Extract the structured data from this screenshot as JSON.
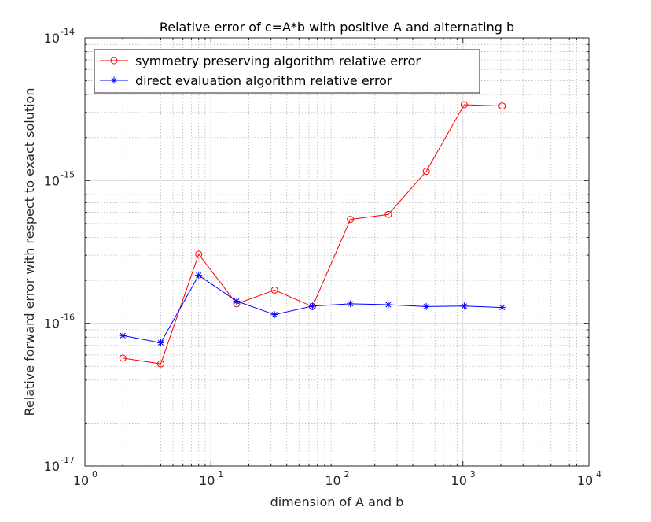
{
  "chart_data": {
    "type": "line",
    "title": "Relative error of c=A*b with positive A and alternating b",
    "xlabel": "dimension of A and b",
    "ylabel": "Relative forward error with respect to exact solution",
    "xscale": "log",
    "yscale": "log",
    "xlim": [
      1,
      10000
    ],
    "ylim": [
      1e-17,
      1e-14
    ],
    "grid": "major and minor",
    "legend_position": "top-left",
    "x_ticks": [
      {
        "base": "10",
        "exp": "0",
        "value": 1
      },
      {
        "base": "10",
        "exp": "1",
        "value": 10
      },
      {
        "base": "10",
        "exp": "2",
        "value": 100
      },
      {
        "base": "10",
        "exp": "3",
        "value": 1000
      },
      {
        "base": "10",
        "exp": "4",
        "value": 10000
      }
    ],
    "y_ticks": [
      {
        "base": "10",
        "exp": "-17",
        "value": 1e-17
      },
      {
        "base": "10",
        "exp": "-16",
        "value": 1e-16
      },
      {
        "base": "10",
        "exp": "-15",
        "value": 1e-15
      },
      {
        "base": "10",
        "exp": "-14",
        "value": 1e-14
      }
    ],
    "x": [
      2,
      4,
      8,
      16,
      32,
      64,
      128,
      256,
      512,
      1024,
      2048
    ],
    "series": [
      {
        "name": "symmetry preserving algorithm relative error",
        "color": "#ff0000",
        "marker": "circle",
        "values": [
          5.7e-17,
          5.2e-17,
          3.05e-16,
          1.37e-16,
          1.71e-16,
          1.31e-16,
          5.35e-16,
          5.8e-16,
          1.16e-15,
          3.4e-15,
          3.33e-15
        ]
      },
      {
        "name": "direct evaluation algorithm relative error",
        "color": "#0000ff",
        "marker": "star",
        "values": [
          8.2e-17,
          7.3e-17,
          2.17e-16,
          1.43e-16,
          1.15e-16,
          1.32e-16,
          1.37e-16,
          1.35e-16,
          1.31e-16,
          1.32e-16,
          1.29e-16
        ]
      }
    ]
  }
}
